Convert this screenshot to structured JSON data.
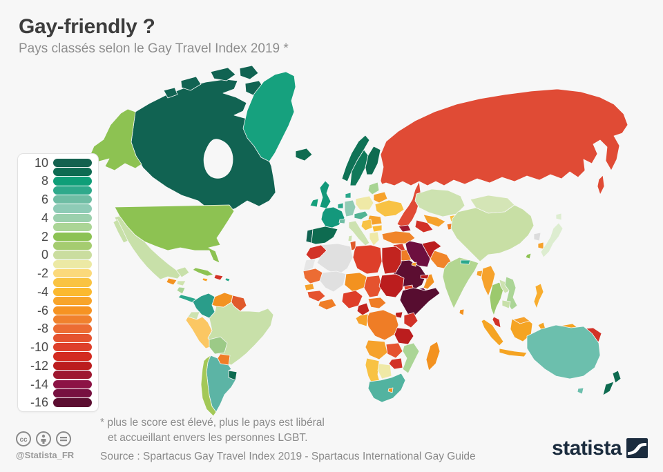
{
  "page": {
    "background": "#f7f7f7"
  },
  "header": {
    "title": "Gay-friendly ?",
    "subtitle": "Pays classés selon le Gay Travel Index 2019 *"
  },
  "footnote": {
    "line1": "* plus le score est élevé, plus le pays est libéral",
    "line2": "et accueillant envers les personnes LGBT."
  },
  "source": {
    "text": "Source : Spartacus Gay Travel Index 2019 - Spartacus International Gay Guide"
  },
  "branding": {
    "handle": "@Statista_FR",
    "logo_text": "statista",
    "logo_color": "#1b2c3e",
    "license_icons": [
      "cc-icon",
      "attribution-person-icon",
      "no-derivatives-icon"
    ]
  },
  "map": {
    "water_color": "#f7f7f7",
    "no_data_color": "#e0e0e0"
  },
  "legend": {
    "scale": [
      {
        "score": 10,
        "color": "#14624f"
      },
      {
        "score": 9,
        "color": "#0e6b52"
      },
      {
        "score": 8,
        "color": "#0f9e78"
      },
      {
        "score": 7,
        "color": "#2fa98b"
      },
      {
        "score": 6,
        "color": "#6fbda4"
      },
      {
        "score": 5,
        "color": "#8ecbb6"
      },
      {
        "score": 4,
        "color": "#9bd0ad"
      },
      {
        "score": 3,
        "color": "#abd596"
      },
      {
        "score": 2,
        "color": "#8cc253"
      },
      {
        "score": 1,
        "color": "#a5cc70"
      },
      {
        "score": 0,
        "color": "#cadd9f"
      },
      {
        "score": -1,
        "color": "#ece9a4"
      },
      {
        "score": -2,
        "color": "#fbd97b"
      },
      {
        "score": -3,
        "color": "#f9c342"
      },
      {
        "score": -4,
        "color": "#fbb92f"
      },
      {
        "score": -5,
        "color": "#f8a42a"
      },
      {
        "score": -6,
        "color": "#f69322"
      },
      {
        "score": -7,
        "color": "#f0812d"
      },
      {
        "score": -8,
        "color": "#ec6c33"
      },
      {
        "score": -9,
        "color": "#e5532f"
      },
      {
        "score": -10,
        "color": "#de3f2a"
      },
      {
        "score": -11,
        "color": "#d32b20"
      },
      {
        "score": -12,
        "color": "#bb1d1e"
      },
      {
        "score": -13,
        "color": "#9e1830"
      },
      {
        "score": -14,
        "color": "#8c1345"
      },
      {
        "score": -15,
        "color": "#771040"
      },
      {
        "score": -16,
        "color": "#5c0e31"
      }
    ]
  },
  "chart_data": {
    "type": "heatmap",
    "subtype": "world-choropleth",
    "title": "Gay-friendly ?",
    "subtitle": "Pays classés selon le Gay Travel Index 2019 *",
    "legend_position": "left",
    "scale": {
      "min": -16,
      "max": 10,
      "tick_labels": [
        10,
        8,
        6,
        4,
        2,
        0,
        -2,
        -4,
        -6,
        -8,
        -10,
        -12,
        -14,
        -16
      ]
    },
    "no_data_color": "#e0e0e0",
    "regions": {
      "canada": {
        "label": "Canada",
        "score": 10,
        "color": "#116352"
      },
      "greenland": {
        "label": "Greenland",
        "score": 8,
        "color": "#16a17e"
      },
      "usa": {
        "label": "United States",
        "score": 2,
        "color": "#8dc252"
      },
      "mexico": {
        "label": "Mexico",
        "score": 0,
        "color": "#c8e0a9"
      },
      "guatemala": {
        "label": "Guatemala",
        "score": -6,
        "color": "#f39220"
      },
      "honduras": {
        "label": "Honduras",
        "score": 0,
        "color": "#cfe3ae"
      },
      "nicaragua": {
        "label": "Nicaragua",
        "score": 3,
        "color": "#abd596"
      },
      "costa_rica_panama": {
        "label": "Costa Rica / Panama",
        "score": 7,
        "color": "#2ba88c"
      },
      "cuba": {
        "label": "Cuba",
        "score": 2,
        "color": "#8dc252"
      },
      "hispaniola": {
        "label": "Haiti / Dominican Rep.",
        "score": -11,
        "color": "#d23227"
      },
      "jamaica": {
        "label": "Jamaica",
        "score": -5,
        "color": "#f6a22c"
      },
      "puerto_rico": {
        "label": "Puerto Rico",
        "score": 7,
        "color": "#2ba88c"
      },
      "colombia": {
        "label": "Colombia",
        "score": 7,
        "color": "#2a9d8a"
      },
      "venezuela": {
        "label": "Venezuela",
        "score": -6,
        "color": "#f39220"
      },
      "guyanas": {
        "label": "Guyana / Suriname",
        "score": -9,
        "color": "#e05a2b"
      },
      "ecuador": {
        "label": "Ecuador",
        "score": 0,
        "color": "#cde2b0"
      },
      "peru": {
        "label": "Peru",
        "score": -3,
        "color": "#fbc763"
      },
      "brazil": {
        "label": "Brazil",
        "score": 0,
        "color": "#c8e0a9"
      },
      "bolivia": {
        "label": "Bolivia",
        "score": 2,
        "color": "#9cca87"
      },
      "paraguay": {
        "label": "Paraguay",
        "score": -7,
        "color": "#ef7d26"
      },
      "uruguay": {
        "label": "Uruguay",
        "score": 9,
        "color": "#0e6b50"
      },
      "argentina": {
        "label": "Argentina",
        "score": 6,
        "color": "#5cb4a5"
      },
      "chile": {
        "label": "Chile",
        "score": 1,
        "color": "#a3c857"
      },
      "iceland": {
        "label": "Iceland",
        "score": 9,
        "color": "#0e6b50"
      },
      "norway": {
        "label": "Norway",
        "score": 9,
        "color": "#0f7256"
      },
      "sweden": {
        "label": "Sweden",
        "score": 9,
        "color": "#10795a"
      },
      "finland": {
        "label": "Finland",
        "score": 9,
        "color": "#0e6b50"
      },
      "denmark": {
        "label": "Denmark",
        "score": 7,
        "color": "#2ba88c"
      },
      "uk": {
        "label": "United Kingdom",
        "score": 8,
        "color": "#12997a"
      },
      "ireland": {
        "label": "Ireland",
        "score": 8,
        "color": "#15a07c"
      },
      "portugal": {
        "label": "Portugal",
        "score": 10,
        "color": "#116352"
      },
      "spain": {
        "label": "Spain",
        "score": 9,
        "color": "#0e6b50"
      },
      "france": {
        "label": "France",
        "score": 8,
        "color": "#14987c"
      },
      "benelux": {
        "label": "Benelux",
        "score": 7,
        "color": "#2ba88c"
      },
      "germany": {
        "label": "Germany",
        "score": 5,
        "color": "#90cbb4"
      },
      "switzerland": {
        "label": "Switzerland",
        "score": 6,
        "color": "#6fbda4"
      },
      "italy": {
        "label": "Italy",
        "score": 0,
        "color": "#cde2b0"
      },
      "austria_czech": {
        "label": "Austria / Czechia",
        "score": 7,
        "color": "#52b394"
      },
      "poland": {
        "label": "Poland",
        "score": -1,
        "color": "#efe9a6"
      },
      "baltics": {
        "label": "Baltic states",
        "score": 3,
        "color": "#a8d493"
      },
      "belarus": {
        "label": "Belarus",
        "score": -5,
        "color": "#f6a22c"
      },
      "ukraine": {
        "label": "Ukraine",
        "score": -3,
        "color": "#f8c244"
      },
      "romania": {
        "label": "Romania",
        "score": -5,
        "color": "#f6a22c"
      },
      "balkans": {
        "label": "Western Balkans",
        "score": -3,
        "color": "#f8c244"
      },
      "bulgaria": {
        "label": "Bulgaria",
        "score": -4,
        "color": "#fbbb35"
      },
      "greece": {
        "label": "Greece",
        "score": -1,
        "color": "#efe9a6"
      },
      "russia": {
        "label": "Russia",
        "score": -10,
        "color": "#e04b35"
      },
      "kazakhstan": {
        "label": "Kazakhstan",
        "score": 0,
        "color": "#cde2b0"
      },
      "uzbekistan": {
        "label": "Uzbekistan",
        "score": -5,
        "color": "#f6a22c"
      },
      "turkmenistan": {
        "label": "Turkmenistan",
        "score": -11,
        "color": "#d23227"
      },
      "kyrgyzstan": {
        "label": "Kyrgyzstan",
        "score": -3,
        "color": "#f8c244"
      },
      "tajikistan": {
        "label": "Tajikistan",
        "score": -7,
        "color": "#ef7d26"
      },
      "caucasus": {
        "label": "Caucasus",
        "score": -13,
        "color": "#9c1830"
      },
      "mongolia": {
        "label": "Mongolia",
        "score": 0,
        "color": "#d4e5b6"
      },
      "china": {
        "label": "China",
        "score": 0,
        "color": "#c8dfa5"
      },
      "taiwan": {
        "label": "Taiwan",
        "score": 2,
        "color": "#8dc252"
      },
      "north_korea": {
        "label": "North Korea",
        "score": null,
        "color": "#dcdcdc"
      },
      "south_korea": {
        "label": "South Korea",
        "score": -5,
        "color": "#f6a22c"
      },
      "japan": {
        "label": "Japan",
        "score": 1,
        "color": "#ddedd0"
      },
      "india": {
        "label": "India",
        "score": 1,
        "color": "#b3d691"
      },
      "pakistan": {
        "label": "Pakistan",
        "score": -7,
        "color": "#f0852a"
      },
      "afghanistan": {
        "label": "Afghanistan",
        "score": -12,
        "color": "#bb1d1e"
      },
      "nepal": {
        "label": "Nepal",
        "score": 7,
        "color": "#2ba88c"
      },
      "bangladesh": {
        "label": "Bangladesh",
        "score": -5,
        "color": "#f6a22c"
      },
      "sri_lanka": {
        "label": "Sri Lanka",
        "score": -6,
        "color": "#f39220"
      },
      "myanmar": {
        "label": "Myanmar",
        "score": -5,
        "color": "#f6a22c"
      },
      "thailand": {
        "label": "Thailand",
        "score": 2,
        "color": "#9cc96d"
      },
      "laos": {
        "label": "Laos",
        "score": 0,
        "color": "#cde2b0"
      },
      "vietnam": {
        "label": "Vietnam",
        "score": 3,
        "color": "#abd596"
      },
      "cambodia": {
        "label": "Cambodia",
        "score": 0,
        "color": "#c8e0a9"
      },
      "malaysia": {
        "label": "Malaysia",
        "score": -11,
        "color": "#d23227"
      },
      "malaysia_borneo": {
        "label": "East Malaysia",
        "score": -5,
        "color": "#f6a22c"
      },
      "indonesia": {
        "label": "Indonesia",
        "score": -5,
        "color": "#f5a423"
      },
      "philippines": {
        "label": "Philippines",
        "score": -4,
        "color": "#f8ad2e"
      },
      "papua_new_guinea": {
        "label": "Papua New Guinea",
        "score": -11,
        "color": "#d23227"
      },
      "turkey": {
        "label": "Turkey",
        "score": -7,
        "color": "#f0852a"
      },
      "syria": {
        "label": "Syria",
        "score": -10,
        "color": "#d93b2b"
      },
      "iraq": {
        "label": "Iraq",
        "score": -7,
        "color": "#ef7d26"
      },
      "iran": {
        "label": "Iran",
        "score": -15,
        "color": "#6d0f3f"
      },
      "jordan": {
        "label": "Jordan",
        "score": -9,
        "color": "#e05a2b"
      },
      "israel": {
        "label": "Israel",
        "score": 8,
        "color": "#15a07c"
      },
      "saudi_arabia": {
        "label": "Saudi Arabia",
        "score": -16,
        "color": "#5c0e31"
      },
      "yemen": {
        "label": "Yemen",
        "score": -15,
        "color": "#6d1040"
      },
      "oman": {
        "label": "Oman",
        "score": -6,
        "color": "#f39220"
      },
      "uae": {
        "label": "United Arab Emirates",
        "score": -12,
        "color": "#bb1d1e"
      },
      "kuwait": {
        "label": "Kuwait",
        "score": -5,
        "color": "#f6a22c"
      },
      "morocco": {
        "label": "Morocco",
        "score": -11,
        "color": "#d23227"
      },
      "western_sahara": {
        "label": "Western Sahara",
        "score": null,
        "color": "#e6e6e6"
      },
      "algeria": {
        "label": "Algeria",
        "score": null,
        "color": "#e0e0e0"
      },
      "tunisia": {
        "label": "Tunisia",
        "score": -9,
        "color": "#e05a2b"
      },
      "libya": {
        "label": "Libya",
        "score": -10,
        "color": "#de3f2a"
      },
      "egypt": {
        "label": "Egypt",
        "score": -12,
        "color": "#c2241f"
      },
      "mauritania": {
        "label": "Mauritania",
        "score": -8,
        "color": "#ec6c33"
      },
      "mali": {
        "label": "Mali",
        "score": null,
        "color": "#e0e0e0"
      },
      "niger": {
        "label": "Niger",
        "score": -6,
        "color": "#f39220"
      },
      "chad": {
        "label": "Chad",
        "score": -9,
        "color": "#e5532f"
      },
      "sudan": {
        "label": "Sudan",
        "score": -12,
        "color": "#bb1d1e"
      },
      "eritrea": {
        "label": "Eritrea",
        "score": -10,
        "color": "#de3f2a"
      },
      "senegal": {
        "label": "Senegal",
        "score": -5,
        "color": "#f6a22c"
      },
      "guinea": {
        "label": "Guinea",
        "score": -9,
        "color": "#e5532f"
      },
      "ghana_ivory": {
        "label": "Ghana / Côte d'Ivoire",
        "score": -7,
        "color": "#ef7d26"
      },
      "nigeria": {
        "label": "Nigeria",
        "score": -10,
        "color": "#de3f2a"
      },
      "cameroon": {
        "label": "Cameroon",
        "score": -12,
        "color": "#c2241f"
      },
      "car": {
        "label": "Central African Rep.",
        "score": -7,
        "color": "#ef7d26"
      },
      "horn_of_africa": {
        "label": "Ethiopia / Somalia",
        "score": -16,
        "color": "#570d30"
      },
      "kenya": {
        "label": "Kenya",
        "score": -11,
        "color": "#d23227"
      },
      "uganda": {
        "label": "Uganda",
        "score": -12,
        "color": "#bb1d1e"
      },
      "drc": {
        "label": "DR Congo",
        "score": -7,
        "color": "#ef7d26"
      },
      "congo_gabon": {
        "label": "Congo / Gabon",
        "score": -5,
        "color": "#f6a22c"
      },
      "tanzania": {
        "label": "Tanzania",
        "score": -12,
        "color": "#bb1d1e"
      },
      "angola": {
        "label": "Angola",
        "score": -5,
        "color": "#f6a22c"
      },
      "zambia": {
        "label": "Zambia",
        "score": -9,
        "color": "#e5532f"
      },
      "malawi": {
        "label": "Malawi",
        "score": -10,
        "color": "#de3f2a"
      },
      "mozambique": {
        "label": "Mozambique",
        "score": 3,
        "color": "#abd596"
      },
      "zimbabwe": {
        "label": "Zimbabwe",
        "score": -11,
        "color": "#d23227"
      },
      "namibia": {
        "label": "Namibia",
        "score": -3,
        "color": "#f8c244"
      },
      "botswana": {
        "label": "Botswana",
        "score": -1,
        "color": "#efe9a6"
      },
      "south_africa": {
        "label": "South Africa",
        "score": 6,
        "color": "#52b3a0"
      },
      "lesotho": {
        "label": "Lesotho",
        "score": -6,
        "color": "#f39220"
      },
      "madagascar": {
        "label": "Madagascar",
        "score": -6,
        "color": "#f39220"
      },
      "australia": {
        "label": "Australia",
        "score": 5,
        "color": "#6cbfad"
      },
      "new_zealand": {
        "label": "New Zealand",
        "score": 9,
        "color": "#0e6b50"
      }
    }
  }
}
